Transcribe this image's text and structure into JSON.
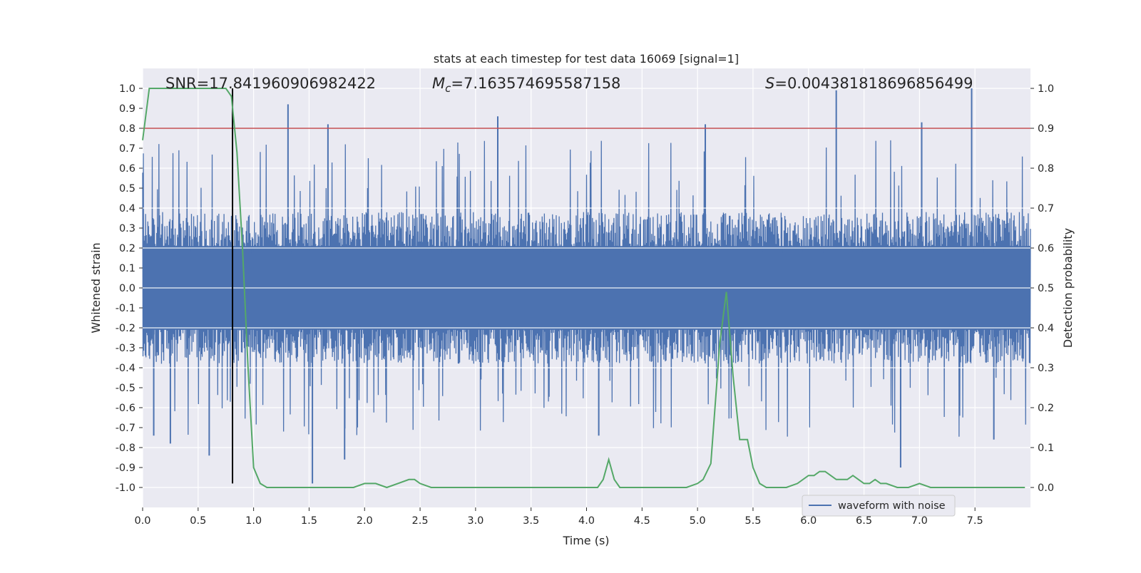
{
  "chart_data": {
    "type": "line",
    "title": "stats at each timestep for test data 16069 [signal=1]",
    "xlabel": "Time (s)",
    "ylabel_left": "Whitened strain",
    "ylabel_right": "Detection probability",
    "xlim": [
      0.0,
      8.0
    ],
    "ylim_left": [
      -1.1,
      1.1
    ],
    "ylim_right": [
      -0.05,
      1.05
    ],
    "x_ticks": [
      "0.0",
      "0.5",
      "1.0",
      "1.5",
      "2.0",
      "2.5",
      "3.0",
      "3.5",
      "4.0",
      "4.5",
      "5.0",
      "5.5",
      "6.0",
      "6.5",
      "7.0",
      "7.5"
    ],
    "y_ticks_left": [
      "1.0",
      "0.9",
      "0.8",
      "0.7",
      "0.6",
      "0.5",
      "0.4",
      "0.3",
      "0.2",
      "0.1",
      "0.0",
      "-0.1",
      "-0.2",
      "-0.3",
      "-0.4",
      "-0.5",
      "-0.6",
      "-0.7",
      "-0.8",
      "-0.9",
      "-1.0"
    ],
    "y_ticks_right": [
      "1.0",
      "0.9",
      "0.8",
      "0.7",
      "0.6",
      "0.5",
      "0.4",
      "0.3",
      "0.2",
      "0.1",
      "0.0"
    ],
    "annotations": {
      "snr": "SNR=17.841960906982422",
      "mc_symbol": "M",
      "mc_sub": "c",
      "mc_value": "=7.163574695587158",
      "s_symbol": "S",
      "s_value": "=0.004381818696856499"
    },
    "threshold": {
      "value": 0.8,
      "axis": "left",
      "color": "#c44e52"
    },
    "marker_line": {
      "x": 0.81,
      "y_range": [
        -0.98,
        1.0
      ],
      "color": "#000000"
    },
    "legend": {
      "placement": "lower-right",
      "entries": [
        {
          "label": "waveform with noise",
          "color": "#4c72b0"
        }
      ]
    },
    "series": [
      {
        "name": "waveform with noise",
        "axis": "left",
        "color": "#4c72b0",
        "style": "noisy-waveform",
        "envelope_typical": 0.38,
        "envelope_peak": 1.0,
        "peaks_upper": [
          {
            "x": 1.31,
            "y": 0.92
          },
          {
            "x": 1.67,
            "y": 0.82
          },
          {
            "x": 3.2,
            "y": 0.86
          },
          {
            "x": 5.07,
            "y": 0.82
          },
          {
            "x": 6.25,
            "y": 0.99
          },
          {
            "x": 7.02,
            "y": 0.83
          },
          {
            "x": 7.47,
            "y": 1.0
          }
        ],
        "peaks_lower": [
          {
            "x": 0.1,
            "y": -0.74
          },
          {
            "x": 0.25,
            "y": -0.78
          },
          {
            "x": 0.6,
            "y": -0.84
          },
          {
            "x": 1.53,
            "y": -0.98
          },
          {
            "x": 1.82,
            "y": -0.86
          },
          {
            "x": 4.11,
            "y": -0.74
          },
          {
            "x": 6.83,
            "y": -0.9
          },
          {
            "x": 7.67,
            "y": -0.76
          }
        ]
      },
      {
        "name": "",
        "axis": "right",
        "color": "#55a868",
        "x": [
          0.0,
          0.06,
          0.12,
          0.2,
          0.3,
          0.4,
          0.5,
          0.6,
          0.7,
          0.75,
          0.8,
          0.85,
          0.9,
          0.95,
          1.0,
          1.06,
          1.12,
          1.2,
          1.3,
          1.4,
          1.5,
          1.6,
          1.7,
          1.8,
          1.9,
          2.0,
          2.05,
          2.1,
          2.2,
          2.3,
          2.4,
          2.45,
          2.5,
          2.6,
          2.7,
          2.8,
          3.0,
          3.2,
          3.4,
          3.6,
          3.8,
          4.0,
          4.1,
          4.15,
          4.2,
          4.25,
          4.3,
          4.4,
          4.5,
          4.6,
          4.8,
          4.9,
          5.0,
          5.05,
          5.12,
          5.2,
          5.26,
          5.32,
          5.38,
          5.45,
          5.5,
          5.56,
          5.62,
          5.7,
          5.8,
          5.9,
          6.0,
          6.05,
          6.1,
          6.15,
          6.2,
          6.25,
          6.3,
          6.35,
          6.4,
          6.45,
          6.5,
          6.55,
          6.6,
          6.65,
          6.7,
          6.8,
          6.9,
          7.0,
          7.1,
          7.2,
          7.3,
          7.4,
          7.5,
          7.6,
          7.7,
          7.8,
          7.85,
          7.95
        ],
        "y": [
          0.87,
          1.0,
          1.0,
          1.0,
          1.0,
          1.0,
          1.0,
          1.0,
          1.0,
          1.0,
          0.98,
          0.84,
          0.6,
          0.3,
          0.05,
          0.01,
          0.0,
          0.0,
          0.0,
          0.0,
          0.0,
          0.0,
          0.0,
          0.0,
          0.0,
          0.01,
          0.01,
          0.01,
          0.0,
          0.01,
          0.02,
          0.02,
          0.01,
          0.0,
          0.0,
          0.0,
          0.0,
          0.0,
          0.0,
          0.0,
          0.0,
          0.0,
          0.0,
          0.02,
          0.07,
          0.02,
          0.0,
          0.0,
          0.0,
          0.0,
          0.0,
          0.0,
          0.01,
          0.02,
          0.06,
          0.36,
          0.49,
          0.28,
          0.12,
          0.12,
          0.05,
          0.01,
          0.0,
          0.0,
          0.0,
          0.01,
          0.03,
          0.03,
          0.04,
          0.04,
          0.03,
          0.02,
          0.02,
          0.02,
          0.03,
          0.02,
          0.01,
          0.01,
          0.02,
          0.01,
          0.01,
          0.0,
          0.0,
          0.01,
          0.0,
          0.0,
          0.0,
          0.0,
          0.0,
          0.0,
          0.0,
          0.0,
          0.0,
          0.0
        ]
      }
    ]
  }
}
